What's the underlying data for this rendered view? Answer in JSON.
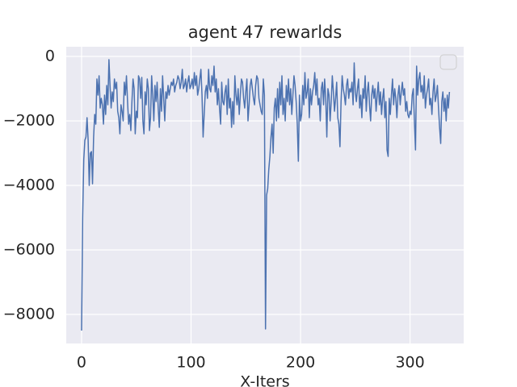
{
  "chart_data": {
    "type": "line",
    "title": "agent 47 rewarlds",
    "x_label": "X-Iters",
    "x": [
      0,
      1,
      2,
      3,
      4,
      5,
      6,
      7,
      8,
      9,
      10,
      11,
      12,
      13,
      14,
      15,
      16,
      17,
      18,
      19,
      20,
      21,
      22,
      23,
      24,
      25,
      26,
      27,
      28,
      29,
      30,
      31,
      32,
      33,
      34,
      35,
      36,
      37,
      38,
      39,
      40,
      41,
      42,
      43,
      44,
      45,
      46,
      47,
      48,
      49,
      50,
      51,
      52,
      53,
      54,
      55,
      56,
      57,
      58,
      59,
      60,
      61,
      62,
      63,
      64,
      65,
      66,
      67,
      68,
      69,
      70,
      71,
      72,
      73,
      74,
      75,
      76,
      77,
      78,
      79,
      80,
      81,
      82,
      83,
      84,
      85,
      86,
      87,
      88,
      89,
      90,
      91,
      92,
      93,
      94,
      95,
      96,
      97,
      98,
      99,
      100,
      101,
      102,
      103,
      104,
      105,
      106,
      107,
      108,
      109,
      110,
      111,
      112,
      113,
      114,
      115,
      116,
      117,
      118,
      119,
      120,
      121,
      122,
      123,
      124,
      125,
      126,
      127,
      128,
      129,
      130,
      131,
      132,
      133,
      134,
      135,
      136,
      137,
      138,
      139,
      140,
      141,
      142,
      143,
      144,
      145,
      146,
      147,
      148,
      149,
      150,
      151,
      152,
      153,
      154,
      155,
      156,
      157,
      158,
      159,
      160,
      161,
      162,
      163,
      164,
      165,
      166,
      167,
      168,
      169,
      170,
      171,
      172,
      173,
      174,
      175,
      176,
      177,
      178,
      179,
      180,
      181,
      182,
      183,
      184,
      185,
      186,
      187,
      188,
      189,
      190,
      191,
      192,
      193,
      194,
      195,
      196,
      197,
      198,
      199,
      200,
      201,
      202,
      203,
      204,
      205,
      206,
      207,
      208,
      209,
      210,
      211,
      212,
      213,
      214,
      215,
      216,
      217,
      218,
      219,
      220,
      221,
      222,
      223,
      224,
      225,
      226,
      227,
      228,
      229,
      230,
      231,
      232,
      233,
      234,
      235,
      236,
      237,
      238,
      239,
      240,
      241,
      242,
      243,
      244,
      245,
      246,
      247,
      248,
      249,
      250,
      251,
      252,
      253,
      254,
      255,
      256,
      257,
      258,
      259,
      260,
      261,
      262,
      263,
      264,
      265,
      266,
      267,
      268,
      269,
      270,
      271,
      272,
      273,
      274,
      275,
      276,
      277,
      278,
      279,
      280,
      281,
      282,
      283,
      284,
      285,
      286,
      287,
      288,
      289,
      290,
      291,
      292,
      293,
      294,
      295,
      296,
      297,
      298,
      299,
      300,
      301,
      302,
      303,
      304,
      305,
      306,
      307,
      308,
      309,
      310,
      311,
      312,
      313,
      314,
      315,
      316,
      317,
      318,
      319,
      320,
      321,
      322,
      323,
      324,
      325,
      326,
      327,
      328,
      329,
      330,
      331,
      332,
      333,
      334,
      335,
      336
    ],
    "series": [
      {
        "color": "#4c72b0",
        "values": [
          -8500,
          -5000,
          -3200,
          -2600,
          -2500,
          -1900,
          -2600,
          -4000,
          -3000,
          -2950,
          -3950,
          -2500,
          -1800,
          -2100,
          -700,
          -1200,
          -600,
          -1600,
          -1300,
          -1500,
          -2100,
          -1200,
          -1800,
          -900,
          -1500,
          -100,
          -900,
          -1600,
          -1100,
          -1400,
          -700,
          -1000,
          -800,
          -1700,
          -1900,
          -2400,
          -1500,
          -1700,
          -2000,
          -800,
          -1200,
          -600,
          -1400,
          -2100,
          -1800,
          -2300,
          -1400,
          -700,
          -1000,
          -2400,
          -1700,
          -1900,
          -600,
          -700,
          -1300,
          -650,
          -2000,
          -2400,
          -1100,
          -1500,
          -700,
          -1000,
          -2300,
          -1900,
          -600,
          -1200,
          -2000,
          -900,
          -1400,
          -800,
          -1600,
          -2200,
          -1000,
          -1700,
          -600,
          -1300,
          -2000,
          -1100,
          -1300,
          -900,
          -1200,
          -1000,
          -800,
          -900,
          -700,
          -1100,
          -900,
          -800,
          -600,
          -700,
          -1000,
          -800,
          -400,
          -1000,
          -900,
          -700,
          -1100,
          -800,
          -600,
          -1000,
          -900,
          -700,
          -1000,
          -500,
          -900,
          -600,
          -1200,
          -1000,
          -700,
          -400,
          -1200,
          -2500,
          -1800,
          -1100,
          -900,
          -1300,
          -400,
          -1000,
          -1100,
          -600,
          -900,
          -300,
          -1100,
          -700,
          -1500,
          -1000,
          -1600,
          -2100,
          -800,
          -1400,
          -1500,
          -1100,
          -900,
          -1800,
          -700,
          -1600,
          -1300,
          -2200,
          -1400,
          -2100,
          -600,
          -1200,
          -1500,
          -1000,
          -1800,
          -1200,
          -700,
          -800,
          -1300,
          -1600,
          -1100,
          -700,
          -2000,
          -1500,
          -900,
          -700,
          -1000,
          -1300,
          -1500,
          -900,
          -600,
          -700,
          -1300,
          -1500,
          -1700,
          -1800,
          -700,
          -1200,
          -8450,
          -4300,
          -4100,
          -3500,
          -3100,
          -2500,
          -2100,
          -3000,
          -1600,
          -1300,
          -2000,
          -1000,
          -1900,
          -800,
          -1500,
          -600,
          -1800,
          -1300,
          -2000,
          -900,
          -1400,
          -700,
          -1500,
          -1000,
          -1800,
          -1200,
          -600,
          -900,
          -1400,
          -2100,
          -3250,
          -1200,
          -2000,
          -1800,
          -900,
          -1500,
          -500,
          -1300,
          -1100,
          -700,
          -1900,
          -1000,
          -1500,
          -1100,
          -900,
          -500,
          -1200,
          -700,
          -1500,
          -1300,
          -2000,
          -1000,
          -800,
          -1500,
          -700,
          -1300,
          -2500,
          -1000,
          -1200,
          -2000,
          -1400,
          -600,
          -1100,
          -1700,
          -1300,
          -800,
          -1900,
          -2100,
          -2800,
          -1400,
          -600,
          -1000,
          -1200,
          -1500,
          -900,
          -700,
          -1300,
          -1000,
          -1100,
          -800,
          -1500,
          -200,
          -1100,
          -1400,
          -1000,
          -700,
          -1600,
          -1200,
          -1900,
          -1000,
          -1300,
          -600,
          -1700,
          -1100,
          -800,
          -1500,
          -2000,
          -1200,
          -900,
          -1300,
          -1000,
          -1700,
          -1200,
          -800,
          -1500,
          -1100,
          -1800,
          -1300,
          -1000,
          -1900,
          -1400,
          -2900,
          -3100,
          -1300,
          -1800,
          -1200,
          -700,
          -1500,
          -1000,
          -1300,
          -1900,
          -1200,
          -900,
          -1500,
          -1100,
          -800,
          -1200,
          -1000,
          -1700,
          -1400,
          -1800,
          -1900,
          -1700,
          -1800,
          -1200,
          -1000,
          -2000,
          -2900,
          -300,
          -1200,
          -700,
          -500,
          -1100,
          -900,
          -1300,
          -600,
          -1600,
          -1200,
          -1000,
          -700,
          -1500,
          -1300,
          -1800,
          -1100,
          -700,
          -1400,
          -1200,
          -900,
          -1600,
          -2200,
          -2700,
          -1400,
          -1100,
          -1700,
          -1300,
          -2000,
          -1200,
          -1600,
          -1100
        ]
      }
    ],
    "xlim": [
      -14,
      349
    ],
    "ylim": [
      -8900,
      300
    ],
    "xticks": [
      0,
      100,
      200,
      300
    ],
    "yticks": [
      0,
      {
        "value": -2000,
        "label": "−2000"
      },
      {
        "value": -4000,
        "label": "−4000"
      },
      {
        "value": -6000,
        "label": "−6000"
      },
      {
        "value": -8000,
        "label": "−8000"
      }
    ],
    "grid": true,
    "legend": "upper right"
  }
}
